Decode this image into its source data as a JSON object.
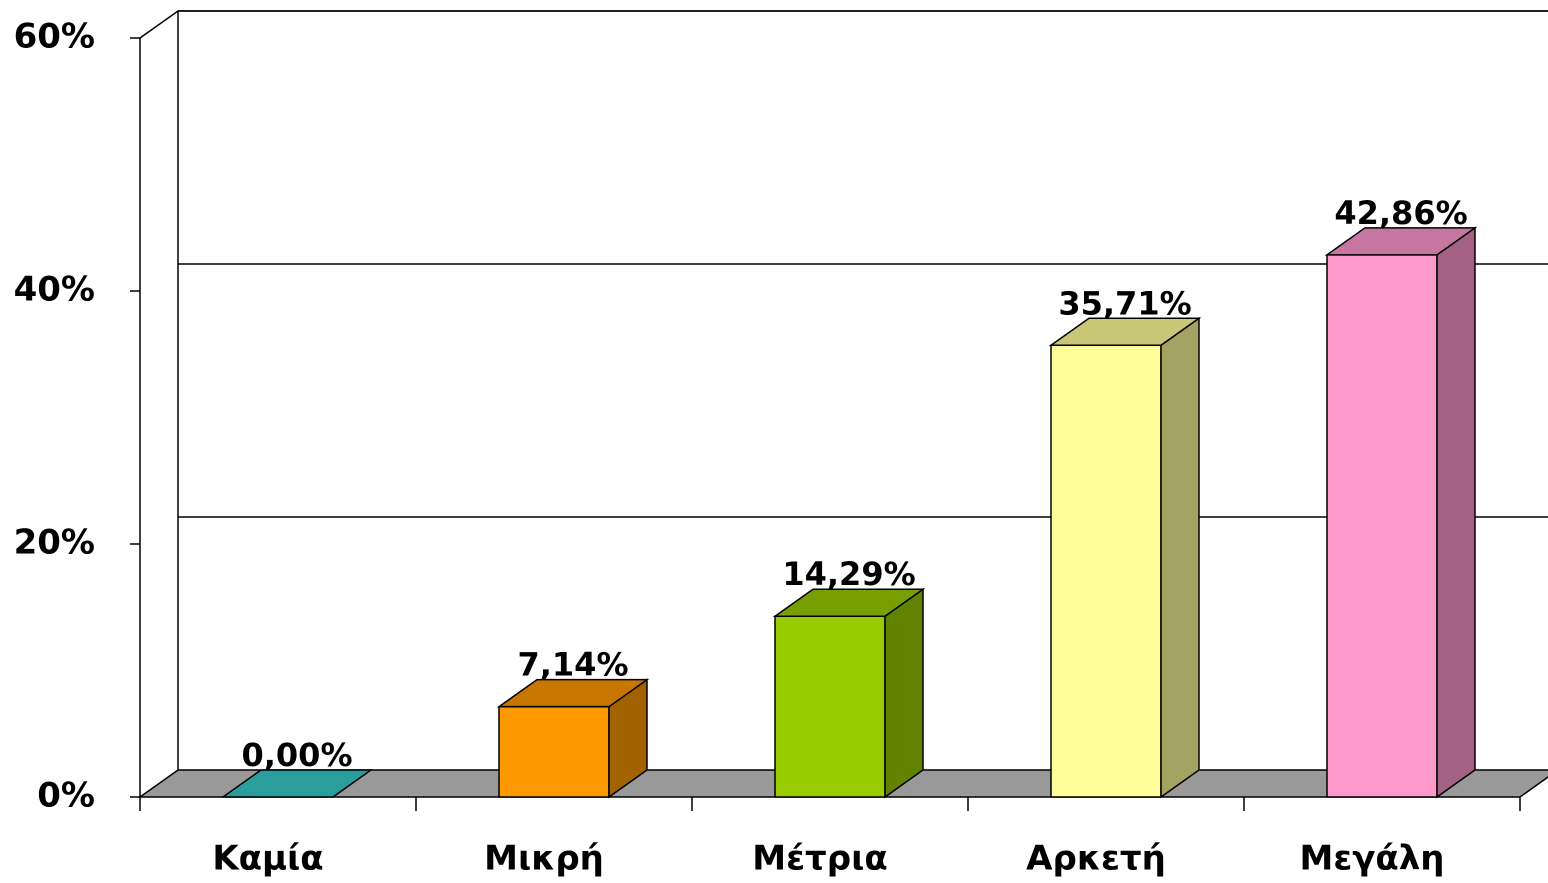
{
  "chart_data": {
    "type": "bar3d",
    "categories": [
      "Καμία",
      "Μικρή",
      "Μέτρια",
      "Αρκετή",
      "Μεγάλη"
    ],
    "values": [
      0,
      7.14,
      14.29,
      35.71,
      42.86
    ],
    "value_labels": [
      "0,00%",
      "7,14%",
      "14,29%",
      "35,71%",
      "42,86%"
    ],
    "colors": [
      "#2a9d9d",
      "#ff9900",
      "#99cc00",
      "#ffff99",
      "#ff99cc"
    ],
    "ylim": [
      0,
      60
    ],
    "yticks": [
      {
        "value": 0,
        "label": "0%"
      },
      {
        "value": 20,
        "label": "20%"
      },
      {
        "value": 40,
        "label": "40%"
      },
      {
        "value": 60,
        "label": "60%"
      }
    ],
    "grid": true
  }
}
